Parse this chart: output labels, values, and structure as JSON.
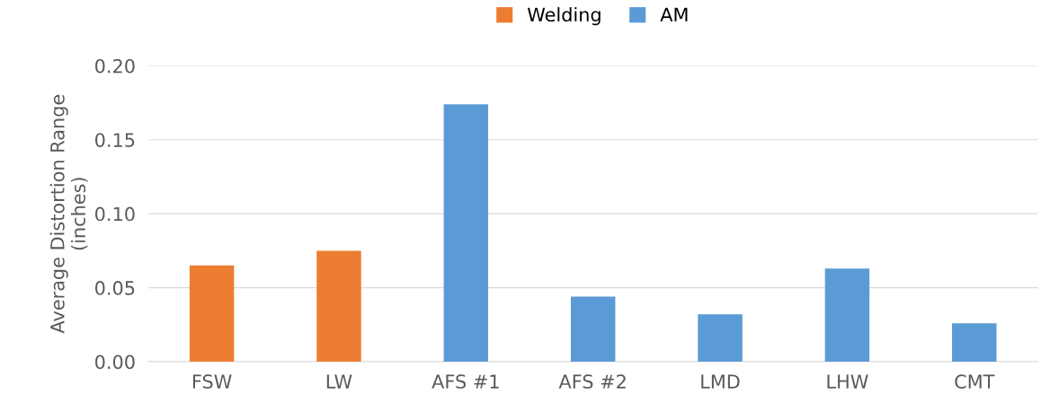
{
  "chart_data": {
    "type": "bar",
    "ylabel": "Average Distortion Range\n(inches)",
    "categories": [
      "FSW",
      "LW",
      "AFS #1",
      "AFS #2",
      "LMD",
      "LHW",
      "CMT"
    ],
    "series": [
      {
        "name": "Welding",
        "color": "#ed7d31",
        "values": [
          0.065,
          0.075,
          null,
          null,
          null,
          null,
          null
        ]
      },
      {
        "name": "AM",
        "color": "#5b9bd5",
        "values": [
          null,
          null,
          0.174,
          0.044,
          0.032,
          0.063,
          0.026
        ]
      }
    ],
    "ylim": [
      0,
      0.2
    ],
    "yticks": [
      {
        "value": 0,
        "label": "0.00"
      },
      {
        "value": 0.05,
        "label": "0.05"
      },
      {
        "value": 0.1,
        "label": "0.10"
      },
      {
        "value": 0.15,
        "label": "0.15"
      },
      {
        "value": 0.2,
        "label": "0.20"
      }
    ],
    "grid": "y",
    "legend": "top"
  }
}
